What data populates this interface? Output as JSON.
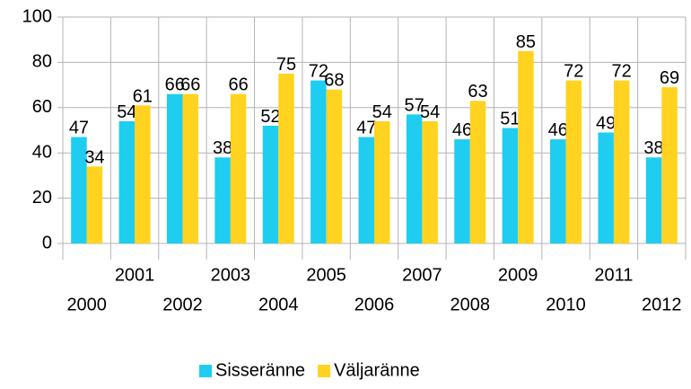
{
  "chart_data": {
    "type": "bar",
    "categories": [
      "2000",
      "2001",
      "2002",
      "2003",
      "2004",
      "2005",
      "2006",
      "2007",
      "2008",
      "2009",
      "2010",
      "2011",
      "2012"
    ],
    "series": [
      {
        "name": "Sisseränne",
        "color": "#1fcdf0",
        "values": [
          47,
          54,
          66,
          38,
          52,
          72,
          47,
          57,
          46,
          51,
          46,
          49,
          38
        ]
      },
      {
        "name": "Väljaränne",
        "color": "#ffd320",
        "values": [
          34,
          61,
          66,
          66,
          75,
          68,
          54,
          54,
          63,
          85,
          72,
          72,
          69
        ]
      }
    ],
    "ylim": [
      0,
      100
    ],
    "yticks": [
      0,
      20,
      40,
      60,
      80,
      100
    ],
    "grid": true,
    "legend": "bottom"
  }
}
